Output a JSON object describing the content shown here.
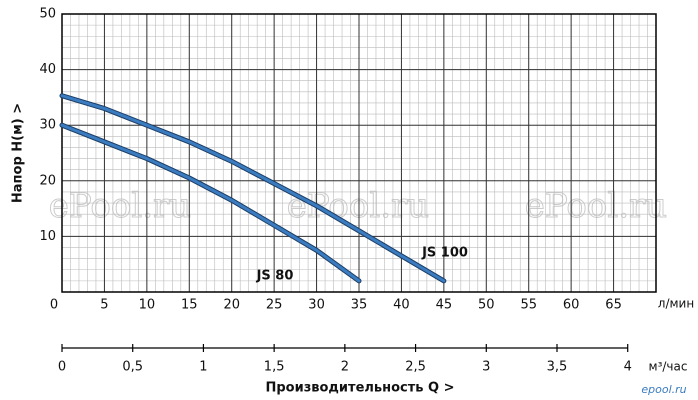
{
  "chart_data": {
    "type": "line",
    "ylabel": "Напор  H(м)  >",
    "xunit": "л/мин",
    "xlabel": "Производительность Q  >",
    "x2unit": "м³/час",
    "xlim": [
      0,
      70
    ],
    "xticks": [
      0,
      5,
      10,
      15,
      20,
      25,
      30,
      35,
      40,
      45,
      50,
      55,
      60,
      65
    ],
    "ylim": [
      0,
      50
    ],
    "yticks": [
      10,
      20,
      30,
      40,
      50
    ],
    "x2lim": [
      0,
      4.2
    ],
    "x2ticks": [
      0,
      {
        "value": 0.5,
        "label": "0,5"
      },
      1,
      {
        "value": 1.5,
        "label": "1,5"
      },
      2,
      {
        "value": 2.5,
        "label": "2,5"
      },
      3,
      {
        "value": 3.5,
        "label": "3,5"
      },
      4
    ],
    "grid": true,
    "xminor": 1,
    "yminor": 2,
    "series": [
      {
        "name": "JS 100",
        "color": "#3b7cc0",
        "x": [
          0,
          5,
          10,
          15,
          20,
          25,
          30,
          35,
          40,
          45
        ],
        "values": [
          35.3,
          33,
          30,
          27,
          23.5,
          19.5,
          15.5,
          11,
          6.5,
          2
        ]
      },
      {
        "name": "JS 80",
        "color": "#3b7cc0",
        "x": [
          0,
          5,
          10,
          15,
          20,
          25,
          30,
          35
        ],
        "values": [
          30,
          27,
          24,
          20.5,
          16.5,
          12,
          7.5,
          2
        ]
      }
    ],
    "watermarks": [
      "ePool.ru",
      "ePool.ru",
      "ePool.ru"
    ],
    "logo": "epool.ru"
  }
}
